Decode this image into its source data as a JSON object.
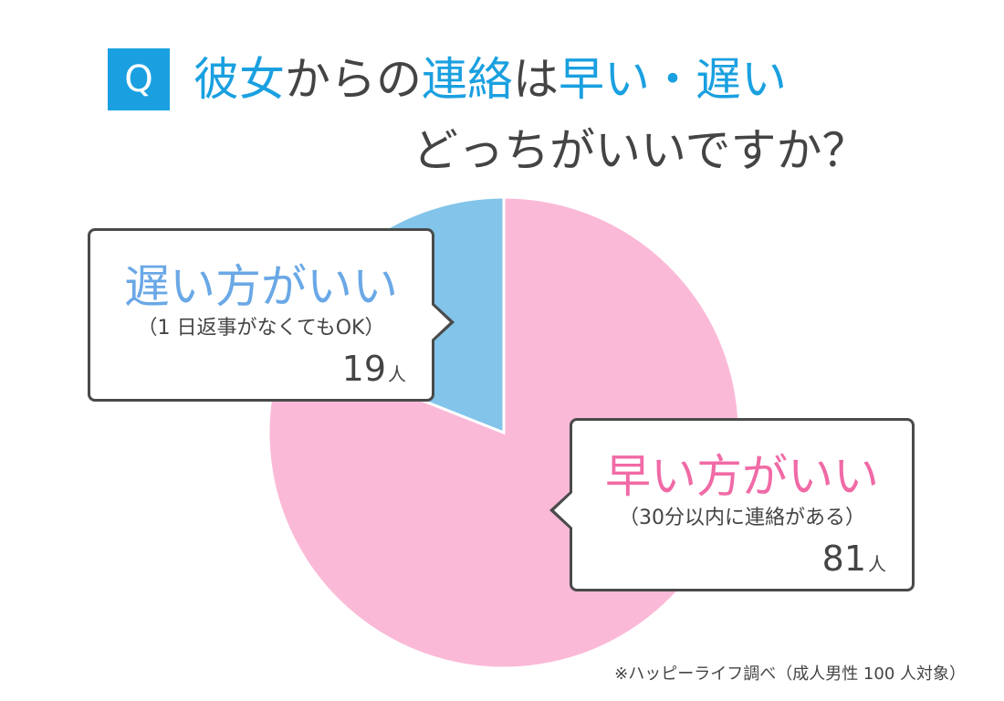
{
  "title": {
    "badge": "Q",
    "line1": [
      {
        "text": "彼女",
        "hl": true
      },
      {
        "text": "からの",
        "hl": false
      },
      {
        "text": "連絡",
        "hl": true
      },
      {
        "text": "は",
        "hl": false
      },
      {
        "text": "早い・遅い",
        "hl": true
      }
    ],
    "line2": "どっちがいいですか？"
  },
  "callouts": {
    "slow": {
      "label": "遅い方がいい",
      "sub": "（1 日返事がなくてもOK）",
      "count": "19",
      "unit": "人"
    },
    "fast": {
      "label": "早い方がいい",
      "sub": "（30分以内に連絡がある）",
      "count": "81",
      "unit": "人"
    }
  },
  "source": "※ハッピーライフ調べ（成人男性 100 人対象）",
  "colors": {
    "accent": "#1aa0e0",
    "slow": "#82c4ea",
    "fast": "#fbb9d8"
  },
  "chart_data": {
    "type": "pie",
    "title": "彼女からの連絡は早い・遅い どっちがいいですか？",
    "unit": "人",
    "start": "12 o'clock, clockwise",
    "slices": [
      {
        "label": "早い方がいい",
        "value": 81,
        "color": "#fbb9d8"
      },
      {
        "label": "遅い方がいい",
        "value": 19,
        "color": "#82c4ea"
      }
    ]
  }
}
